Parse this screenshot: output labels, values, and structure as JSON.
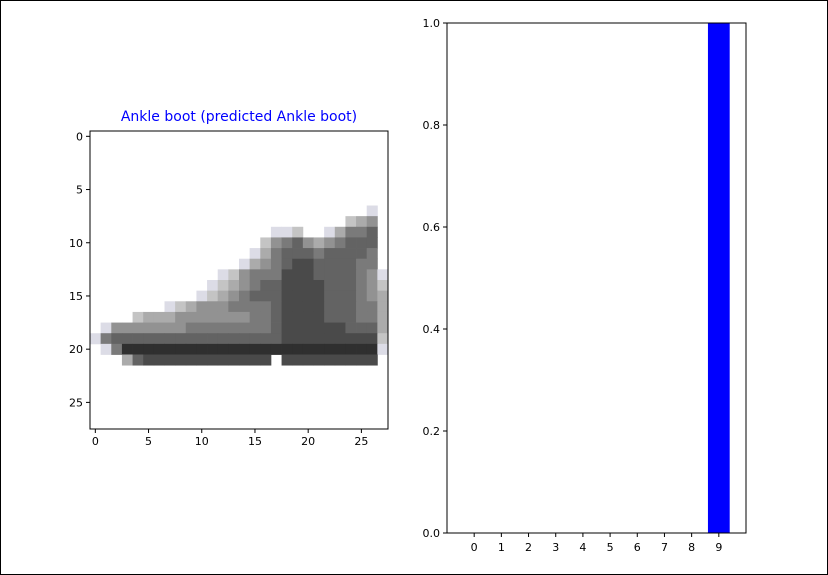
{
  "chart_data": [
    {
      "type": "heatmap",
      "title": "Ankle boot (predicted Ankle boot)",
      "title_color": "#0000ff",
      "colormap": "binary",
      "image_size": [
        28,
        28
      ],
      "xticks": [
        0,
        5,
        10,
        15,
        20,
        25
      ],
      "yticks": [
        0,
        5,
        10,
        15,
        20,
        25
      ],
      "xlim": [
        -0.5,
        27.5
      ],
      "ylim": [
        27.5,
        -0.5
      ],
      "grid": false,
      "pixels": [
        "0000000000000000000000000000",
        "0000000000000000000000000000",
        "0000000000000000000000000000",
        "0000000000000000000000000000",
        "0000000000000000000000000000",
        "0000000000000000000000000000",
        "0000000000000000000000000000",
        "0000000000000000000000000010",
        "0000000000000000000000002340",
        "0000000000000000011200135560",
        "0000000000000000245643456660",
        "0000000000000001356665666650",
        "0000000000000013456776666550",
        "0000000000001245557776666541",
        "0000000000012345667777666542",
        "0000000000123456667777666543",
        "0000000123444555567777666553",
        "0000233344444445567777666553",
        "0144444445555555567777776663",
        "1566666666666666667777777772",
        "0158888888888888888888888881",
        "0003677777777777707777777770",
        "0000000000000000000000000000",
        "0000000000000000000000000000",
        "0000000000000000000000000000",
        "0000000000000000000000000000",
        "0000000000000000000000000000",
        "0000000000000000000000000000"
      ]
    },
    {
      "type": "bar",
      "categories": [
        "0",
        "1",
        "2",
        "3",
        "4",
        "5",
        "6",
        "7",
        "8",
        "9"
      ],
      "values": [
        0,
        0,
        0,
        0,
        0,
        0,
        0,
        0,
        0,
        1.0
      ],
      "bar_colors": [
        "#808080",
        "#808080",
        "#808080",
        "#808080",
        "#808080",
        "#808080",
        "#808080",
        "#808080",
        "#808080",
        "#0000ff"
      ],
      "ylim": [
        0,
        1.0
      ],
      "yticks": [
        "0.0",
        "0.2",
        "0.4",
        "0.6",
        "0.8",
        "1.0"
      ],
      "grid": false
    }
  ]
}
